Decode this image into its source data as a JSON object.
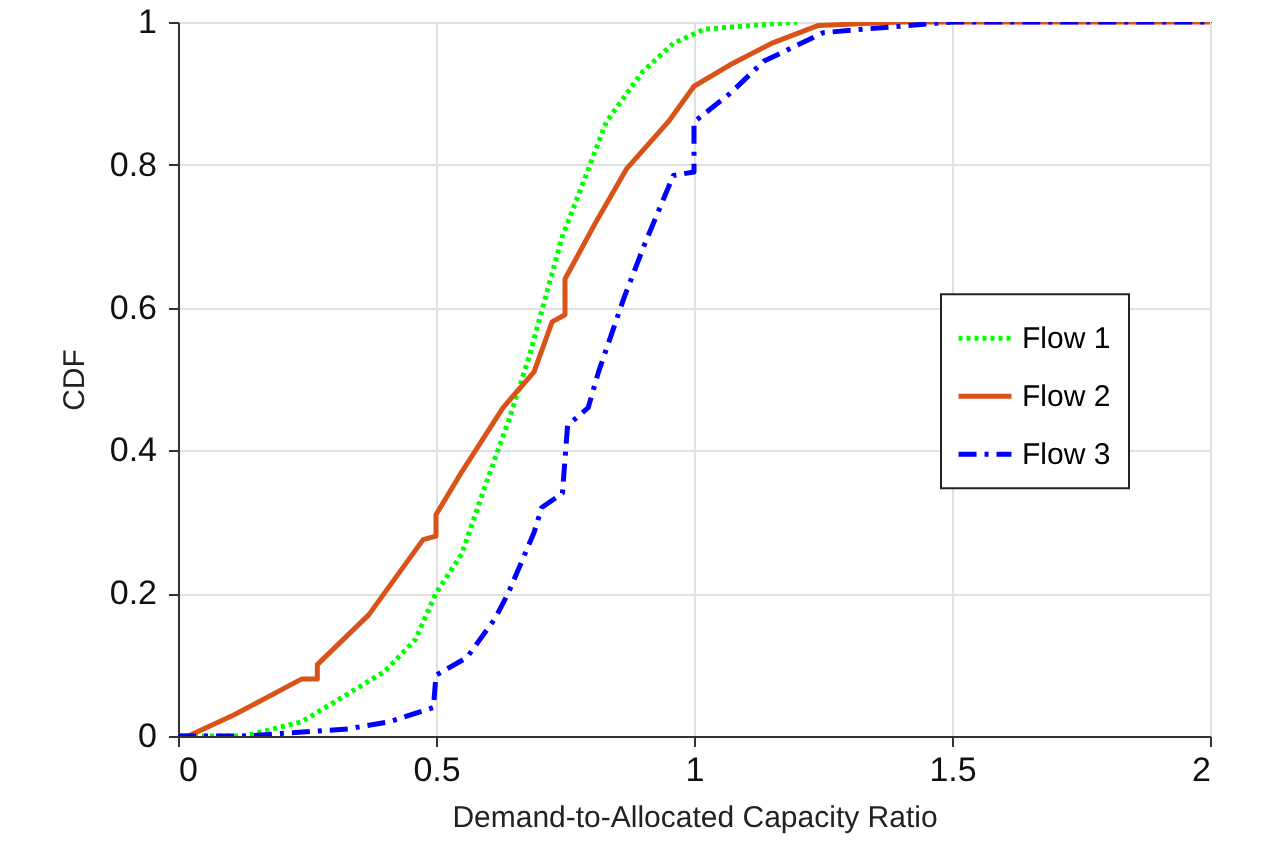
{
  "chart_data": {
    "type": "line",
    "xlabel": "Demand-to-Allocated Capacity Ratio",
    "ylabel": "CDF",
    "xlim": [
      0,
      2
    ],
    "ylim": [
      0,
      1
    ],
    "xticks": [
      0,
      0.5,
      1,
      1.5,
      2
    ],
    "yticks": [
      0,
      0.2,
      0.4,
      0.6,
      0.8,
      1
    ],
    "grid": true,
    "legend": "right",
    "series": [
      {
        "name": "Flow 1",
        "color": "#00ff00",
        "line_style": "dotted",
        "x": [
          0,
          0.13,
          0.24,
          0.4,
          0.46,
          0.5,
          0.55,
          0.6,
          0.64,
          0.68,
          0.745,
          0.78,
          0.83,
          0.9,
          0.96,
          1.02,
          1.2
        ],
        "values": [
          0,
          0,
          0.02,
          0.09,
          0.135,
          0.2,
          0.255,
          0.36,
          0.44,
          0.53,
          0.7,
          0.765,
          0.86,
          0.93,
          0.97,
          0.99,
          1
        ]
      },
      {
        "name": "Flow 2",
        "color": "#d95319",
        "line_style": "solid",
        "x": [
          0,
          0.02,
          0.11,
          0.24,
          0.27,
          0.27,
          0.37,
          0.475,
          0.5,
          0.5,
          0.55,
          0.63,
          0.69,
          0.725,
          0.75,
          0.75,
          0.81,
          0.87,
          0.95,
          1.0,
          1.07,
          1.15,
          1.24,
          1.4,
          2
        ],
        "values": [
          0,
          0,
          0.03,
          0.08,
          0.08,
          0.1,
          0.17,
          0.275,
          0.28,
          0.31,
          0.37,
          0.46,
          0.51,
          0.58,
          0.59,
          0.64,
          0.72,
          0.795,
          0.86,
          0.91,
          0.94,
          0.97,
          0.995,
          1,
          1
        ]
      },
      {
        "name": "Flow 3",
        "color": "#0000ff",
        "line_style": "dashed",
        "x": [
          0,
          0.13,
          0.33,
          0.41,
          0.495,
          0.5,
          0.56,
          0.615,
          0.64,
          0.69,
          0.705,
          0.745,
          0.755,
          0.795,
          0.815,
          0.865,
          0.905,
          0.96,
          1.0,
          1.0,
          1.07,
          1.135,
          1.25,
          1.33,
          1.5,
          2
        ],
        "values": [
          0,
          0,
          0.01,
          0.02,
          0.04,
          0.085,
          0.11,
          0.165,
          0.2,
          0.285,
          0.32,
          0.34,
          0.435,
          0.46,
          0.51,
          0.615,
          0.69,
          0.785,
          0.79,
          0.86,
          0.9,
          0.945,
          0.985,
          0.99,
          1,
          1
        ]
      }
    ]
  }
}
